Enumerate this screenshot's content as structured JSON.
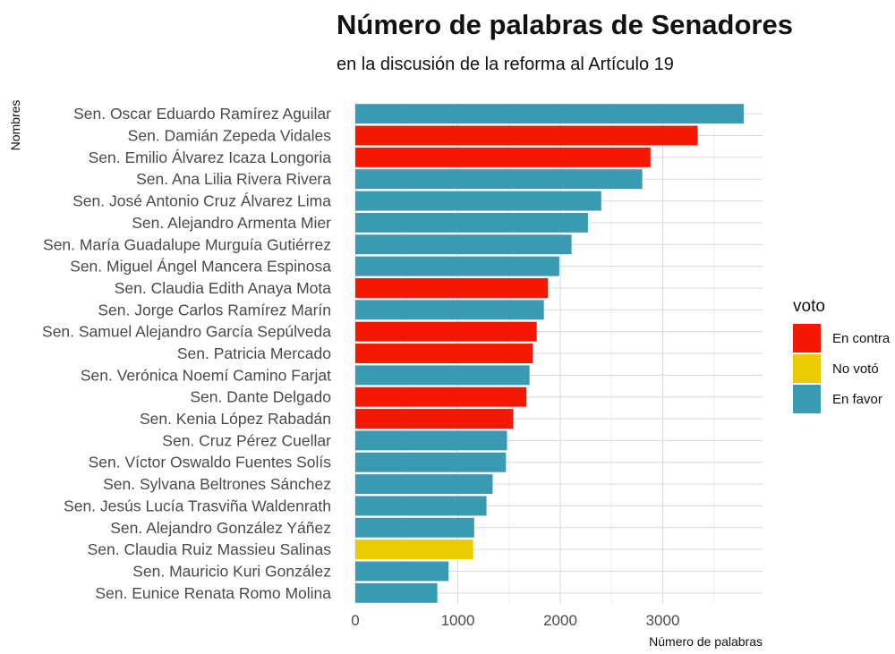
{
  "chart_data": {
    "type": "bar",
    "orientation": "horizontal",
    "title": "Número de palabras de Senadores",
    "subtitle": "en la discusión de la reforma al Artículo 19",
    "xlabel": "Número de palabras",
    "ylabel": "Nombres",
    "xlim": [
      0,
      3800
    ],
    "xticks": [
      "0",
      "1000",
      "2000",
      "3000"
    ],
    "grid": true,
    "legend": {
      "title": "voto",
      "position": "right",
      "entries": [
        {
          "key": "en_contra",
          "label": "En contra",
          "color": "#f51800"
        },
        {
          "key": "no_voto",
          "label": "No votó",
          "color": "#ebcc00"
        },
        {
          "key": "en_favor",
          "label": "En favor",
          "color": "#3a9ab2"
        }
      ]
    },
    "bars": [
      {
        "name": "Sen. Oscar Eduardo Ramírez Aguilar",
        "value": 3790,
        "vote": "en_favor"
      },
      {
        "name": "Sen. Damián Zepeda Vidales",
        "value": 3340,
        "vote": "en_contra"
      },
      {
        "name": "Sen. Emilio Álvarez Icaza Longoria",
        "value": 2880,
        "vote": "en_contra"
      },
      {
        "name": "Sen. Ana Lilia Rivera Rivera",
        "value": 2800,
        "vote": "en_favor"
      },
      {
        "name": "Sen. José Antonio Cruz Álvarez Lima",
        "value": 2400,
        "vote": "en_favor"
      },
      {
        "name": "Sen. Alejandro Armenta Mier",
        "value": 2270,
        "vote": "en_favor"
      },
      {
        "name": "Sen. María Guadalupe Murguía Gutiérrez",
        "value": 2110,
        "vote": "en_favor"
      },
      {
        "name": "Sen. Miguel Ángel Mancera Espinosa",
        "value": 1990,
        "vote": "en_favor"
      },
      {
        "name": "Sen. Claudia Edith Anaya Mota",
        "value": 1880,
        "vote": "en_contra"
      },
      {
        "name": "Sen. Jorge Carlos Ramírez Marín",
        "value": 1840,
        "vote": "en_favor"
      },
      {
        "name": "Sen. Samuel Alejandro García Sepúlveda",
        "value": 1770,
        "vote": "en_contra"
      },
      {
        "name": "Sen. Patricia Mercado",
        "value": 1730,
        "vote": "en_contra"
      },
      {
        "name": "Sen. Verónica Noemí Camino Farjat",
        "value": 1700,
        "vote": "en_favor"
      },
      {
        "name": "Sen. Dante Delgado",
        "value": 1670,
        "vote": "en_contra"
      },
      {
        "name": "Sen. Kenia López Rabadán",
        "value": 1540,
        "vote": "en_contra"
      },
      {
        "name": "Sen. Cruz Pérez Cuellar",
        "value": 1480,
        "vote": "en_favor"
      },
      {
        "name": "Sen. Víctor Oswaldo Fuentes Solís",
        "value": 1470,
        "vote": "en_favor"
      },
      {
        "name": "Sen. Sylvana Beltrones Sánchez",
        "value": 1340,
        "vote": "en_favor"
      },
      {
        "name": "Sen. Jesús Lucía Trasviña Waldenrath",
        "value": 1280,
        "vote": "en_favor"
      },
      {
        "name": "Sen. Alejandro González Yáñez",
        "value": 1160,
        "vote": "en_favor"
      },
      {
        "name": "Sen. Claudia Ruiz Massieu Salinas",
        "value": 1150,
        "vote": "no_voto"
      },
      {
        "name": "Sen. Mauricio Kuri González",
        "value": 910,
        "vote": "en_favor"
      },
      {
        "name": "Sen. Eunice Renata Romo Molina",
        "value": 800,
        "vote": "en_favor"
      }
    ]
  }
}
